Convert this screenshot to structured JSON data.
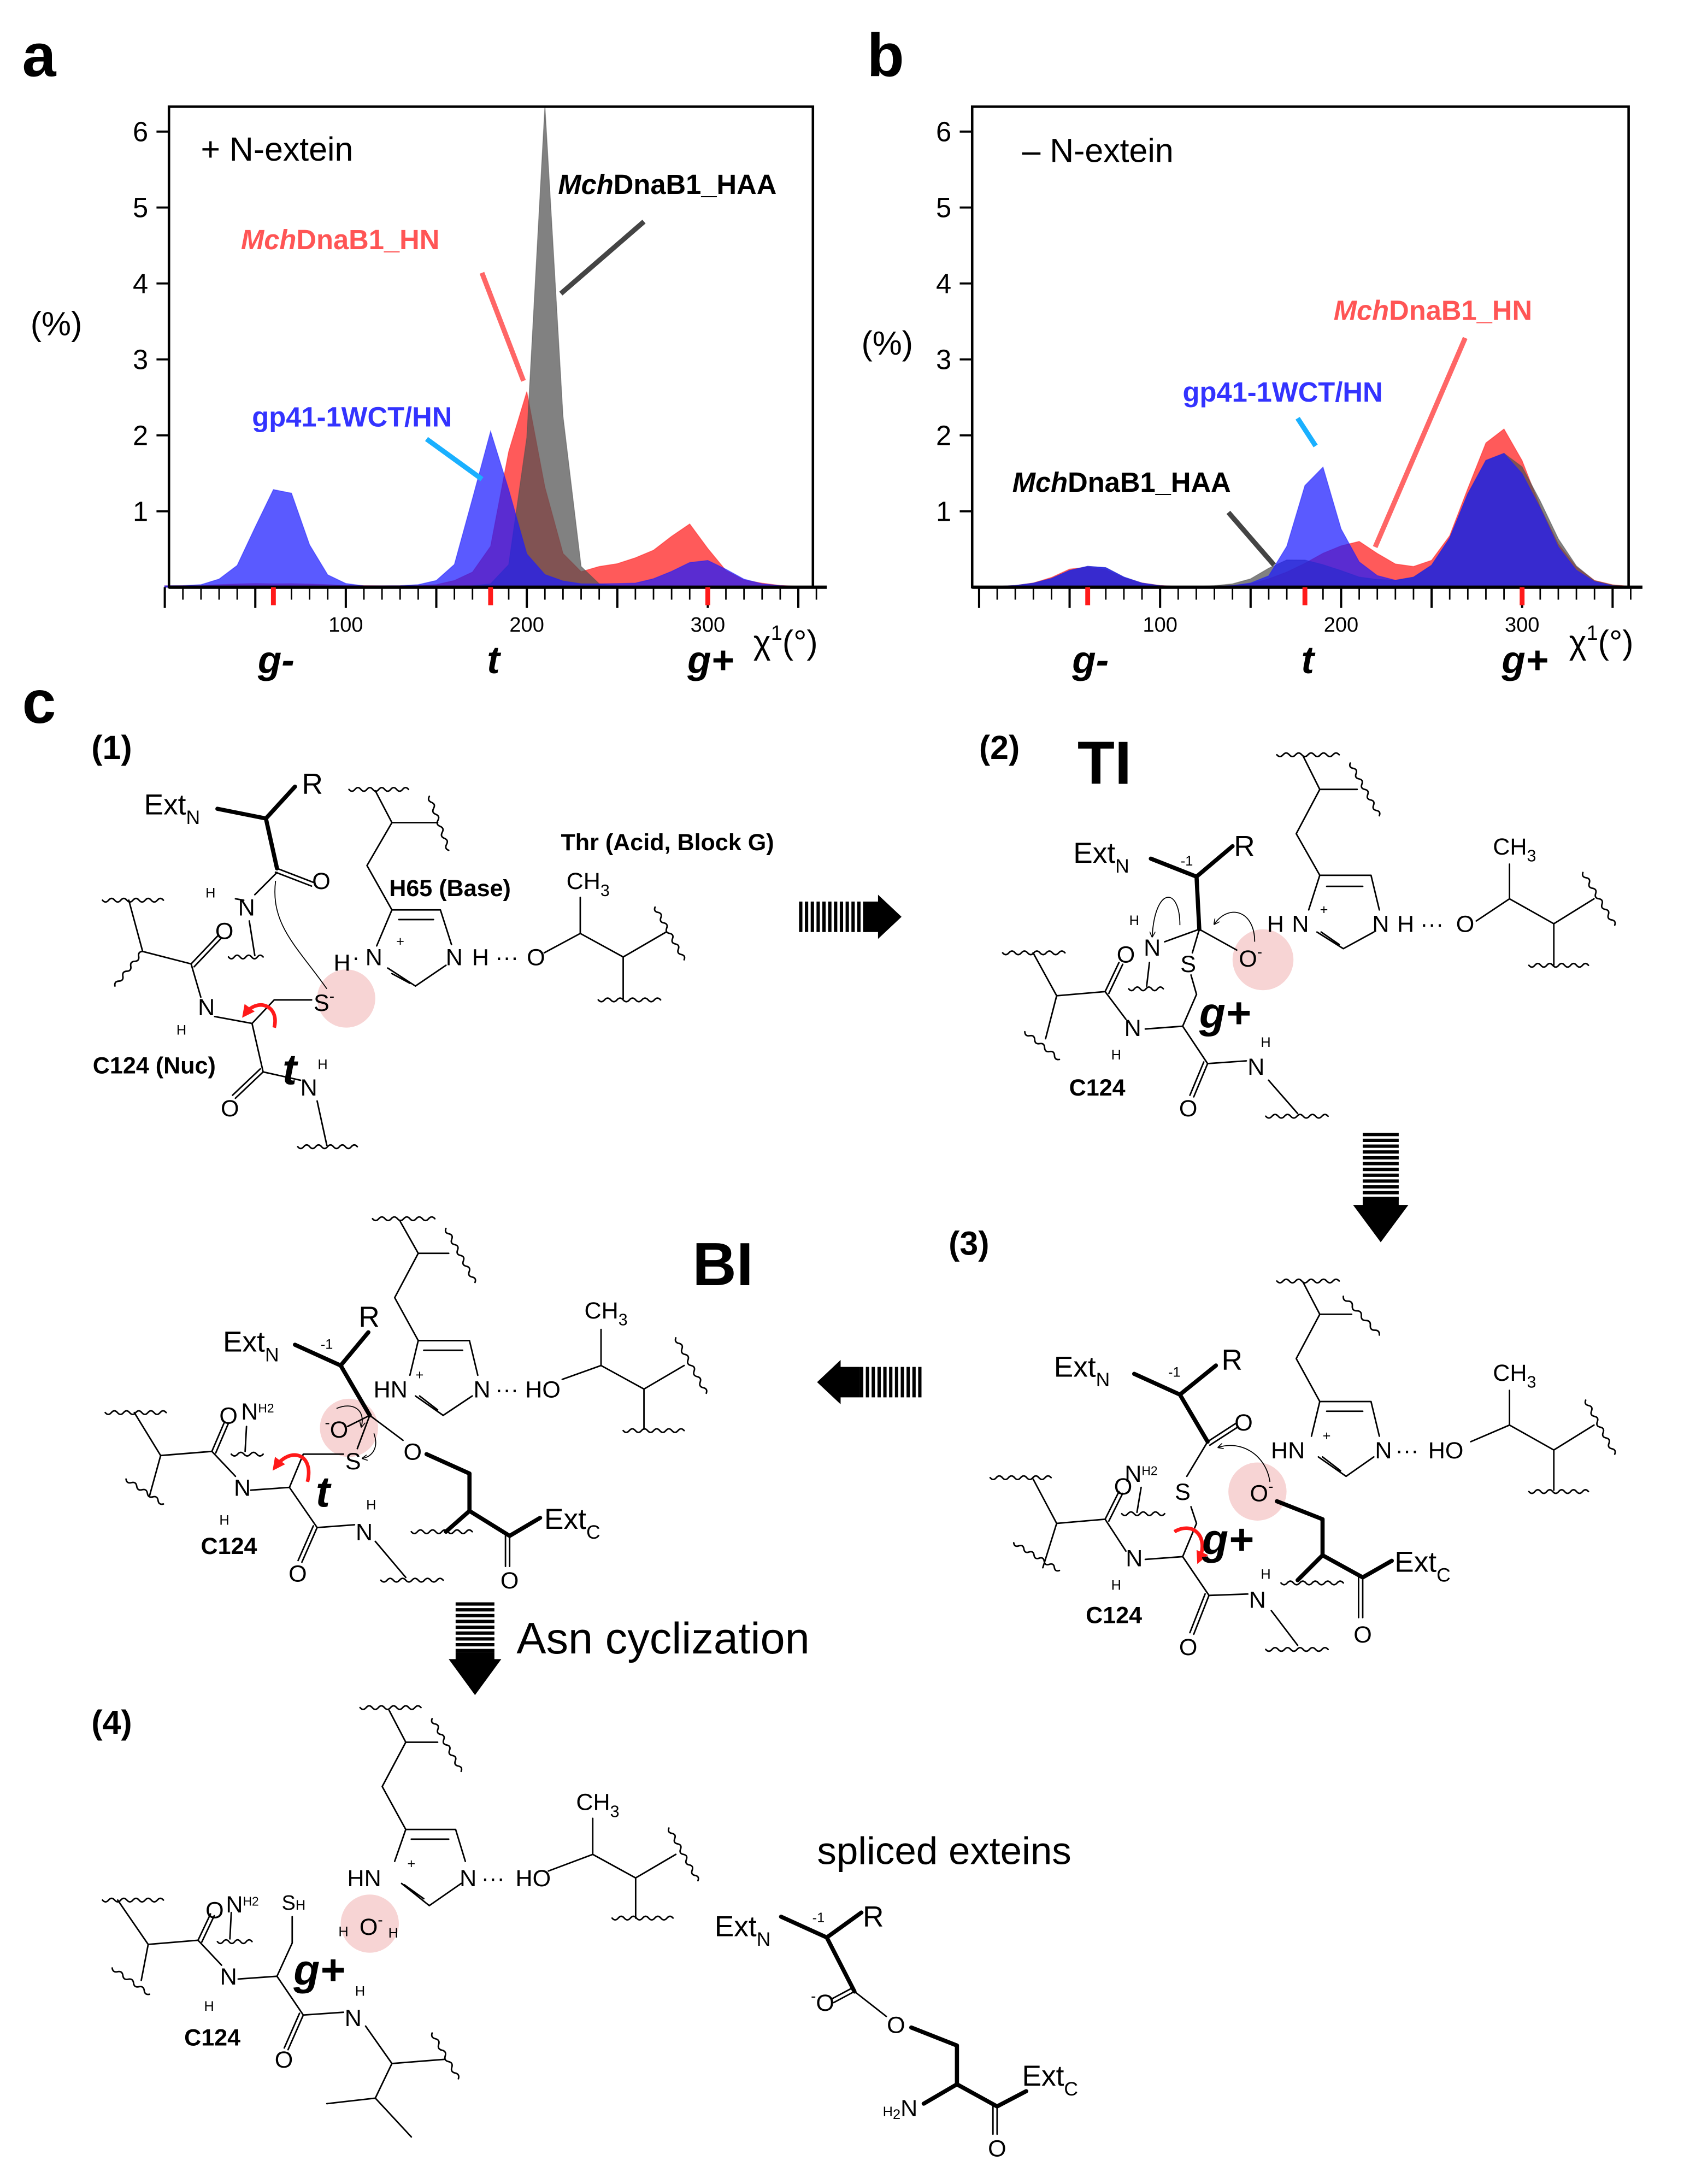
{
  "panel_labels": {
    "a": "a",
    "b": "b",
    "c": "c"
  },
  "colors": {
    "gp41": "#1a1aff",
    "hn": "#ff1a1a",
    "haa": "#505050",
    "label_gp41": "#3333ff",
    "label_hn": "#ff5555",
    "label_haa": "#000000",
    "pointer_gp41": "#1ab0ff",
    "pointer_hn": "#ff6666",
    "pointer_haa": "#444444",
    "rotamer_tick": "#ff1a1a",
    "highlight": "#f6cccc"
  },
  "chart_data": [
    {
      "type": "area",
      "panel": "a",
      "annotation": "+ N-extein",
      "ylabel": "(%)",
      "xlabel": {
        "symbol": "χ",
        "superscript": "1",
        "unit": "(°)"
      },
      "xlim": [
        0,
        360
      ],
      "ylim": [
        0,
        6.3
      ],
      "xticks": [
        100,
        200,
        300
      ],
      "yticks": [
        1,
        2,
        3,
        4,
        5,
        6
      ],
      "rotamer_labels": [
        {
          "label": "g-",
          "x": 60
        },
        {
          "label": "t",
          "x": 180
        },
        {
          "label": "g+",
          "x": 300
        }
      ],
      "grid": false,
      "x": [
        0,
        10,
        20,
        30,
        40,
        50,
        60,
        70,
        80,
        90,
        100,
        110,
        120,
        130,
        140,
        150,
        160,
        170,
        180,
        190,
        200,
        210,
        220,
        230,
        240,
        250,
        260,
        270,
        280,
        290,
        300,
        310,
        320,
        330,
        340,
        350,
        360
      ],
      "series": [
        {
          "name": "MchDnaB1_HN",
          "color_key": "hn",
          "values": [
            0.02,
            0.02,
            0.02,
            0.03,
            0.04,
            0.05,
            0.05,
            0.05,
            0.04,
            0.03,
            0.02,
            0.02,
            0.02,
            0.02,
            0.02,
            0.03,
            0.08,
            0.2,
            0.6,
            2.0,
            2.6,
            1.2,
            0.4,
            0.2,
            0.3,
            0.35,
            0.4,
            0.45,
            0.6,
            0.8,
            0.55,
            0.25,
            0.1,
            0.05,
            0.02,
            0.01,
            0.01
          ]
        },
        {
          "name": "MchDnaB1_HAA",
          "color_key": "haa",
          "values": [
            0.01,
            0.01,
            0.01,
            0.01,
            0.01,
            0.01,
            0.01,
            0.01,
            0.01,
            0.01,
            0.01,
            0.01,
            0.01,
            0.01,
            0.01,
            0.01,
            0.01,
            0.02,
            0.05,
            0.3,
            1.8,
            5.7,
            2.2,
            0.3,
            0.05,
            0.02,
            0.01,
            0.01,
            0.01,
            0.01,
            0.01,
            0.01,
            0.01,
            0.01,
            0.01,
            0.01,
            0.01
          ]
        },
        {
          "name": "gp41-1WCT/HN",
          "color_key": "gp41",
          "values": [
            0.02,
            0.02,
            0.03,
            0.1,
            0.3,
            0.9,
            1.4,
            1.2,
            0.5,
            0.15,
            0.05,
            0.02,
            0.02,
            0.02,
            0.03,
            0.08,
            0.3,
            1.3,
            2.3,
            1.3,
            0.4,
            0.15,
            0.08,
            0.05,
            0.05,
            0.05,
            0.05,
            0.1,
            0.2,
            0.35,
            0.4,
            0.25,
            0.1,
            0.04,
            0.02,
            0.01,
            0.01
          ]
        }
      ]
    },
    {
      "type": "area",
      "panel": "b",
      "annotation": "– N-extein",
      "ylabel": "(%)",
      "xlabel": {
        "symbol": "χ",
        "superscript": "1",
        "unit": "(°)"
      },
      "xlim": [
        0,
        360
      ],
      "ylim": [
        0,
        6.3
      ],
      "xticks": [
        100,
        200,
        300
      ],
      "yticks": [
        1,
        2,
        3,
        4,
        5,
        6
      ],
      "rotamer_labels": [
        {
          "label": "g-",
          "x": 60
        },
        {
          "label": "t",
          "x": 180
        },
        {
          "label": "g+",
          "x": 300
        }
      ],
      "grid": false,
      "x": [
        0,
        10,
        20,
        30,
        40,
        50,
        60,
        70,
        80,
        90,
        100,
        110,
        120,
        130,
        140,
        150,
        160,
        170,
        180,
        190,
        200,
        210,
        220,
        230,
        240,
        250,
        260,
        270,
        280,
        290,
        300,
        310,
        320,
        330,
        340,
        350,
        360
      ],
      "series": [
        {
          "name": "MchDnaB1_HN",
          "color_key": "hn",
          "values": [
            0.01,
            0.01,
            0.02,
            0.05,
            0.12,
            0.25,
            0.3,
            0.25,
            0.12,
            0.05,
            0.02,
            0.01,
            0.01,
            0.01,
            0.02,
            0.04,
            0.1,
            0.2,
            0.35,
            0.5,
            0.55,
            0.55,
            0.4,
            0.3,
            0.3,
            0.4,
            0.7,
            1.2,
            1.7,
            2.0,
            1.8,
            1.2,
            0.6,
            0.25,
            0.08,
            0.03,
            0.01
          ]
        },
        {
          "name": "MchDnaB1_HAA",
          "color_key": "haa",
          "values": [
            0.01,
            0.01,
            0.02,
            0.05,
            0.12,
            0.25,
            0.3,
            0.25,
            0.12,
            0.05,
            0.02,
            0.01,
            0.01,
            0.02,
            0.04,
            0.1,
            0.25,
            0.4,
            0.4,
            0.3,
            0.2,
            0.12,
            0.1,
            0.1,
            0.15,
            0.3,
            0.6,
            1.1,
            1.6,
            1.9,
            1.8,
            1.2,
            0.6,
            0.25,
            0.08,
            0.03,
            0.01
          ]
        },
        {
          "name": "gp41-1WCT/HN",
          "color_key": "gp41",
          "values": [
            0.01,
            0.01,
            0.02,
            0.05,
            0.12,
            0.25,
            0.3,
            0.25,
            0.12,
            0.05,
            0.02,
            0.01,
            0.01,
            0.01,
            0.02,
            0.05,
            0.15,
            0.6,
            1.5,
            1.6,
            0.7,
            0.3,
            0.15,
            0.1,
            0.15,
            0.3,
            0.6,
            1.1,
            1.6,
            1.9,
            1.7,
            1.1,
            0.5,
            0.2,
            0.07,
            0.02,
            0.01
          ]
        }
      ]
    }
  ],
  "diagram": {
    "symbols": {
      "ext": "Ext",
      "n_sub": "N",
      "c_sub": "C",
      "R": "R",
      "O": "O",
      "N": "N",
      "H": "H",
      "S": "S",
      "minus": "-",
      "plus": "+",
      "ch": "CH",
      "three": "3",
      "two": "2",
      "hn": "HN",
      "ho": "HO",
      "minus_one": "-1",
      "hbond": "···",
      "dot": "·"
    },
    "step1": {
      "number": "(1)",
      "nucleophile": "C124 (Nuc)",
      "base": "H65 (Base)",
      "acid": "Thr (Acid, Block G)",
      "conformation": "t"
    },
    "step2": {
      "number": "(2)",
      "title": "TI",
      "residue": "C124",
      "conformation": "g+"
    },
    "step3": {
      "number": "(3)",
      "residue": "C124",
      "conformation": "g+"
    },
    "step_bi": {
      "title": "BI",
      "residue": "C124",
      "conformation": "t"
    },
    "step4": {
      "number": "(4)",
      "residue": "C124",
      "conformation": "g+"
    },
    "asn_cyclization": "Asn cyclization",
    "spliced_exteins": "spliced exteins"
  }
}
